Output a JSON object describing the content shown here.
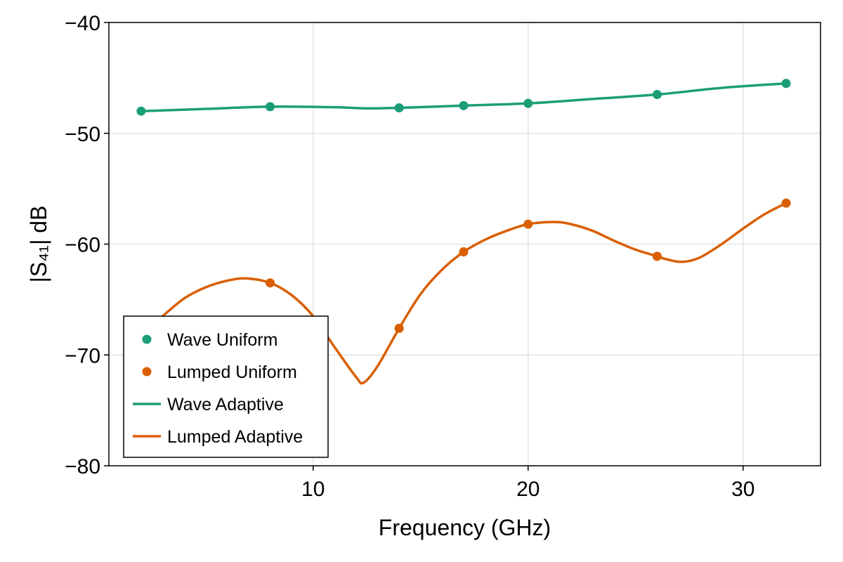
{
  "chart_data": {
    "type": "line",
    "xlabel": "Frequency (GHz)",
    "ylabel": "|S₄₁| dB",
    "xlim": [
      0.5,
      33.6
    ],
    "ylim": [
      -80,
      -40
    ],
    "xticks": [
      10,
      20,
      30
    ],
    "yticks": [
      -40,
      -50,
      -60,
      -70,
      -80
    ],
    "x_tick_labels": [
      "10",
      "20",
      "30"
    ],
    "y_tick_labels": [
      "−40",
      "−50",
      "−60",
      "−70",
      "−80"
    ],
    "grid": true,
    "legend_position": "bottom-left",
    "series": [
      {
        "name": "Wave Uniform",
        "kind": "points",
        "color": "#1b9e77",
        "x": [
          2,
          8,
          14,
          17,
          20,
          26,
          32
        ],
        "y": [
          -48.0,
          -47.6,
          -47.7,
          -47.5,
          -47.3,
          -46.5,
          -45.5
        ]
      },
      {
        "name": "Lumped Uniform",
        "kind": "points",
        "color": "#d95f02",
        "x": [
          8,
          14,
          17,
          20,
          26,
          32
        ],
        "y": [
          -63.5,
          -67.6,
          -60.7,
          -58.2,
          -61.1,
          -56.3
        ]
      },
      {
        "name": "Wave Adaptive",
        "kind": "line",
        "color": "#1b9e77",
        "x": [
          2,
          5,
          8,
          11,
          12.5,
          14,
          17,
          20,
          23,
          26,
          29,
          32
        ],
        "y": [
          -48.0,
          -47.8,
          -47.6,
          -47.65,
          -47.75,
          -47.7,
          -47.5,
          -47.3,
          -46.9,
          -46.5,
          -45.9,
          -45.5
        ]
      },
      {
        "name": "Lumped Adaptive",
        "kind": "line",
        "color": "#d95f02",
        "x": [
          3,
          4,
          5,
          6,
          6.9,
          8,
          9,
          10,
          11,
          12,
          12.35,
          13,
          14,
          15,
          16,
          17,
          18,
          19,
          20,
          21.2,
          22,
          23,
          24,
          25,
          26,
          26.5,
          27.2,
          28,
          29,
          30,
          31,
          32
        ],
        "y": [
          -66.5,
          -64.9,
          -63.9,
          -63.3,
          -63.1,
          -63.5,
          -64.6,
          -66.5,
          -69.3,
          -72.0,
          -72.5,
          -71.0,
          -67.6,
          -64.5,
          -62.3,
          -60.7,
          -59.6,
          -58.8,
          -58.2,
          -58.0,
          -58.2,
          -58.8,
          -59.7,
          -60.5,
          -61.1,
          -61.4,
          -61.6,
          -61.2,
          -60.0,
          -58.6,
          -57.3,
          -56.3
        ]
      }
    ]
  }
}
